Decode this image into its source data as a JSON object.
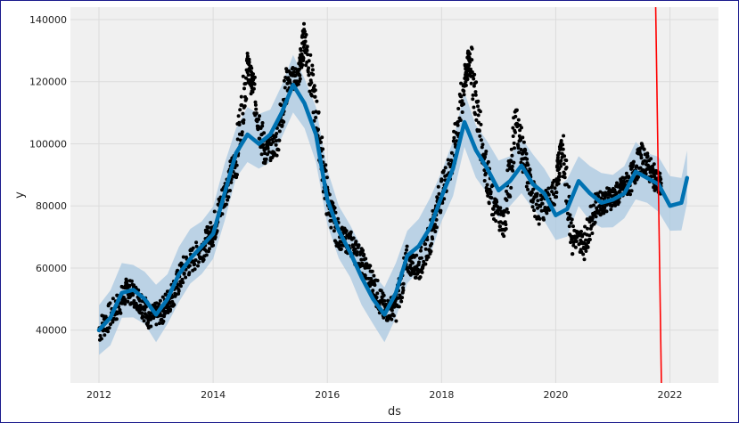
{
  "chart_data": {
    "type": "line",
    "title": "",
    "xlabel": "ds",
    "ylabel": "y",
    "xlim": [
      2011.5,
      2022.85
    ],
    "ylim": [
      23000,
      144000
    ],
    "x_ticks": [
      2012,
      2014,
      2016,
      2018,
      2020,
      2022
    ],
    "x_tick_labels": [
      "2012",
      "2014",
      "2016",
      "2018",
      "2020",
      "2022"
    ],
    "y_ticks": [
      40000,
      60000,
      80000,
      100000,
      120000,
      140000
    ],
    "y_tick_labels": [
      "40000",
      "60000",
      "80000",
      "100000",
      "120000",
      "140000"
    ],
    "grid": true,
    "colors": {
      "observed": "#000000",
      "forecast": "#0072b2",
      "interval": "#a9c8e2",
      "changepoint_line": "#ff0000",
      "background": "#f0f0f0",
      "grid": "#dcdcdc"
    },
    "forecast": {
      "x": [
        2012.0,
        2012.2,
        2012.4,
        2012.6,
        2012.8,
        2013.0,
        2013.2,
        2013.4,
        2013.6,
        2013.8,
        2014.0,
        2014.2,
        2014.4,
        2014.6,
        2014.8,
        2015.0,
        2015.2,
        2015.4,
        2015.6,
        2015.8,
        2016.0,
        2016.2,
        2016.4,
        2016.6,
        2016.8,
        2017.0,
        2017.2,
        2017.4,
        2017.6,
        2017.8,
        2018.0,
        2018.2,
        2018.4,
        2018.6,
        2018.8,
        2019.0,
        2019.2,
        2019.4,
        2019.6,
        2019.8,
        2020.0,
        2020.2,
        2020.4,
        2020.6,
        2020.8,
        2021.0,
        2021.2,
        2021.4,
        2021.6,
        2021.8,
        2022.0,
        2022.2,
        2022.3
      ],
      "yhat": [
        40000,
        44000,
        52000,
        53000,
        50000,
        45000,
        50000,
        58000,
        63000,
        67000,
        71000,
        84000,
        97000,
        103000,
        100000,
        103000,
        110000,
        119000,
        113000,
        103000,
        82000,
        72000,
        65000,
        57000,
        50000,
        45000,
        52000,
        64000,
        67000,
        73000,
        83000,
        92000,
        107000,
        98000,
        92000,
        85000,
        88000,
        93000,
        87000,
        84000,
        77000,
        79000,
        88000,
        84000,
        81000,
        82000,
        84000,
        91000,
        89000,
        87000,
        80000,
        81000,
        89000
      ],
      "band": 8000
    },
    "observed": {
      "description_points": [
        [
          2012.0,
          40000
        ],
        [
          2012.3,
          47000
        ],
        [
          2012.5,
          53000
        ],
        [
          2012.7,
          50000
        ],
        [
          2012.9,
          44000
        ],
        [
          2013.1,
          46000
        ],
        [
          2013.3,
          52000
        ],
        [
          2013.5,
          60000
        ],
        [
          2013.8,
          66000
        ],
        [
          2014.0,
          72000
        ],
        [
          2014.2,
          84000
        ],
        [
          2014.4,
          95000
        ],
        [
          2014.6,
          125000
        ],
        [
          2014.7,
          118000
        ],
        [
          2014.9,
          97000
        ],
        [
          2015.1,
          100000
        ],
        [
          2015.3,
          120000
        ],
        [
          2015.5,
          122000
        ],
        [
          2015.6,
          135000
        ],
        [
          2015.8,
          110000
        ],
        [
          2016.0,
          82000
        ],
        [
          2016.2,
          70000
        ],
        [
          2016.4,
          68000
        ],
        [
          2016.6,
          62000
        ],
        [
          2016.8,
          55000
        ],
        [
          2017.0,
          46000
        ],
        [
          2017.2,
          48000
        ],
        [
          2017.4,
          62000
        ],
        [
          2017.6,
          60000
        ],
        [
          2017.8,
          70000
        ],
        [
          2018.0,
          85000
        ],
        [
          2018.2,
          95000
        ],
        [
          2018.4,
          120000
        ],
        [
          2018.5,
          128000
        ],
        [
          2018.7,
          100000
        ],
        [
          2018.9,
          80000
        ],
        [
          2019.1,
          74000
        ],
        [
          2019.3,
          108000
        ],
        [
          2019.5,
          90000
        ],
        [
          2019.7,
          78000
        ],
        [
          2020.0,
          85000
        ],
        [
          2020.1,
          100000
        ],
        [
          2020.3,
          70000
        ],
        [
          2020.5,
          68000
        ],
        [
          2020.7,
          80000
        ],
        [
          2020.9,
          82000
        ],
        [
          2021.1,
          84000
        ],
        [
          2021.3,
          88000
        ],
        [
          2021.5,
          96000
        ],
        [
          2021.7,
          90000
        ],
        [
          2021.85,
          86000
        ]
      ]
    },
    "changepoint_line": {
      "x_top": 2021.75,
      "x_bottom": 2021.85
    }
  }
}
